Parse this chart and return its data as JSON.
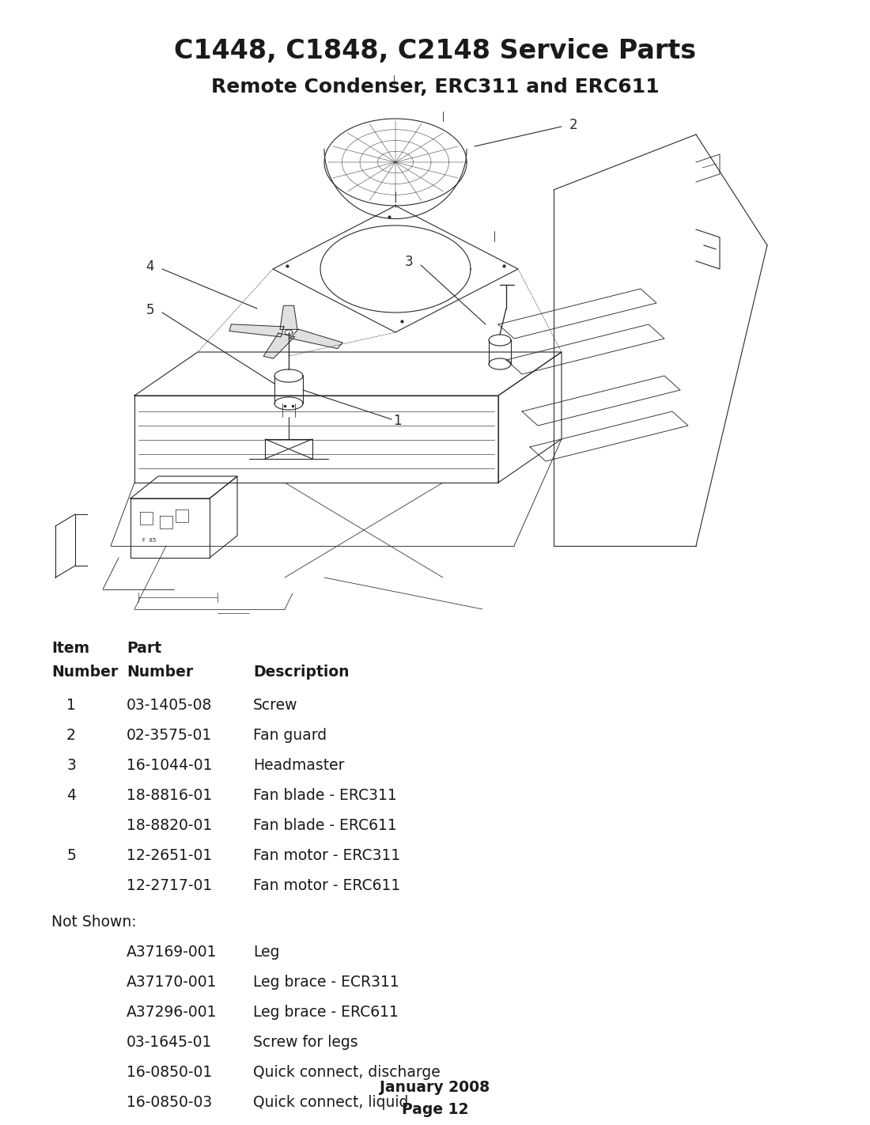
{
  "title": "C1448, C1848, C2148 Service Parts",
  "subtitle": "Remote Condenser, ERC311 and ERC611",
  "title_fontsize": 24,
  "subtitle_fontsize": 18,
  "bg_color": "#ffffff",
  "text_color": "#1a1a1a",
  "parts": [
    {
      "item": "1",
      "part": "03-1405-08",
      "desc": "Screw"
    },
    {
      "item": "2",
      "part": "02-3575-01",
      "desc": "Fan guard"
    },
    {
      "item": "3",
      "part": "16-1044-01",
      "desc": "Headmaster"
    },
    {
      "item": "4",
      "part": "18-8816-01",
      "desc": "Fan blade - ERC311"
    },
    {
      "item": "",
      "part": "18-8820-01",
      "desc": "Fan blade - ERC611"
    },
    {
      "item": "5",
      "part": "12-2651-01",
      "desc": "Fan motor - ERC311"
    },
    {
      "item": "",
      "part": "12-2717-01",
      "desc": "Fan motor - ERC611"
    }
  ],
  "not_shown_label": "Not Shown:",
  "not_shown": [
    {
      "part": "A37169-001",
      "desc": "Leg"
    },
    {
      "part": "A37170-001",
      "desc": "Leg brace - ECR311"
    },
    {
      "part": "A37296-001",
      "desc": "Leg brace - ERC611"
    },
    {
      "part": "03-1645-01",
      "desc": "Screw for legs"
    },
    {
      "part": "16-0850-01",
      "desc": "Quick connect, discharge"
    },
    {
      "part": "16-0850-03",
      "desc": "Quick connect, liquid"
    }
  ],
  "footer_line1": "January 2008",
  "footer_line2": "Page 12",
  "lc": "#2a2a2a"
}
